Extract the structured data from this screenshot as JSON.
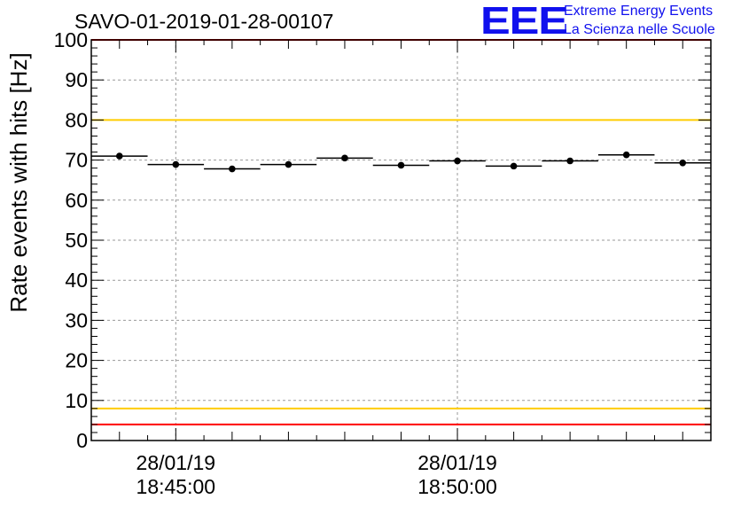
{
  "chart_data": {
    "type": "scatter",
    "title": "SAVO-01-2019-01-28-00107",
    "ylabel": "Rate events with hits [Hz]",
    "xlabel": "",
    "ylim": [
      0,
      100
    ],
    "yticks": [
      0,
      10,
      20,
      30,
      40,
      50,
      60,
      70,
      80,
      90,
      100
    ],
    "grid": true,
    "x_axis_range": [
      "18:43:30",
      "18:54:30"
    ],
    "x_tick_labels": [
      {
        "time": "18:45:00",
        "date_label": "28/01/19",
        "time_label": "18:45:00"
      },
      {
        "time": "18:50:00",
        "date_label": "28/01/19",
        "time_label": "18:50:00"
      }
    ],
    "series": [
      {
        "x_start": [
          "18:43:30",
          "18:44:30",
          "18:45:30",
          "18:46:30",
          "18:47:30",
          "18:48:30",
          "18:49:30",
          "18:50:30",
          "18:51:30",
          "18:52:30",
          "18:53:30"
        ],
        "x_end": [
          "18:44:30",
          "18:45:30",
          "18:46:30",
          "18:47:30",
          "18:48:30",
          "18:49:30",
          "18:50:30",
          "18:51:30",
          "18:52:30",
          "18:53:30",
          "18:54:30"
        ],
        "y": [
          71.0,
          68.9,
          67.8,
          68.9,
          70.5,
          68.7,
          69.8,
          68.5,
          69.8,
          71.3,
          69.3
        ],
        "y_err": [
          0.6,
          0.6,
          0.6,
          0.6,
          0.6,
          0.6,
          0.6,
          0.6,
          0.6,
          0.6,
          0.6
        ]
      }
    ],
    "reference_lines": [
      {
        "y": 80,
        "color": "#ffcc00"
      },
      {
        "y": 8,
        "color": "#ffcc00"
      },
      {
        "y": 100,
        "color": "#ff0000"
      },
      {
        "y": 4,
        "color": "#ff0000"
      }
    ]
  },
  "logo": {
    "mark": "EEE",
    "line1": "Extreme Energy Events",
    "line2": "La Scienza nelle Scuole",
    "color": "#1010ee"
  }
}
